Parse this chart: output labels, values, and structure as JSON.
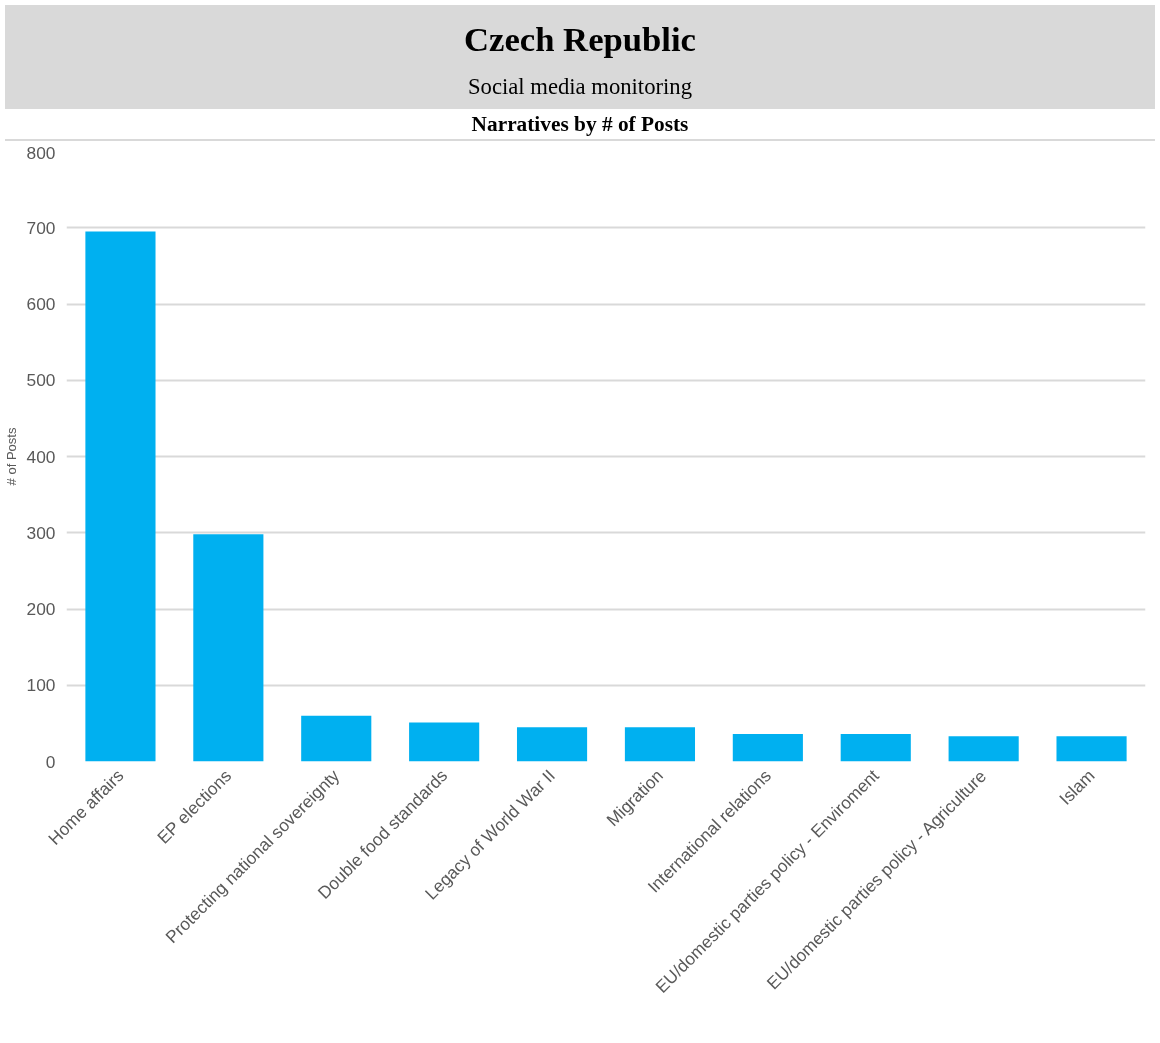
{
  "chart_data": {
    "type": "bar",
    "title": "Czech Republic",
    "subtitle": "Social media monitoring",
    "annotations": [
      "Narratives by # of Posts"
    ],
    "ylabel": "# of Posts",
    "categories": [
      "Home affairs",
      "EP elections",
      "Protecting national sovereignty",
      "Double food standards",
      "Legacy of World War II",
      "Migration",
      "International relations",
      "EU/domestic parties policy - Enviroment",
      "EU/domestic parties policy - Agriculture",
      "Islam"
    ],
    "values": [
      695,
      298,
      60,
      51,
      45,
      45,
      36,
      36,
      33,
      33
    ],
    "color": "#00b0f0",
    "ylim": [
      0,
      800
    ],
    "yticks": [
      0,
      100,
      200,
      300,
      400,
      500,
      600,
      700,
      800
    ],
    "grid": "y"
  }
}
